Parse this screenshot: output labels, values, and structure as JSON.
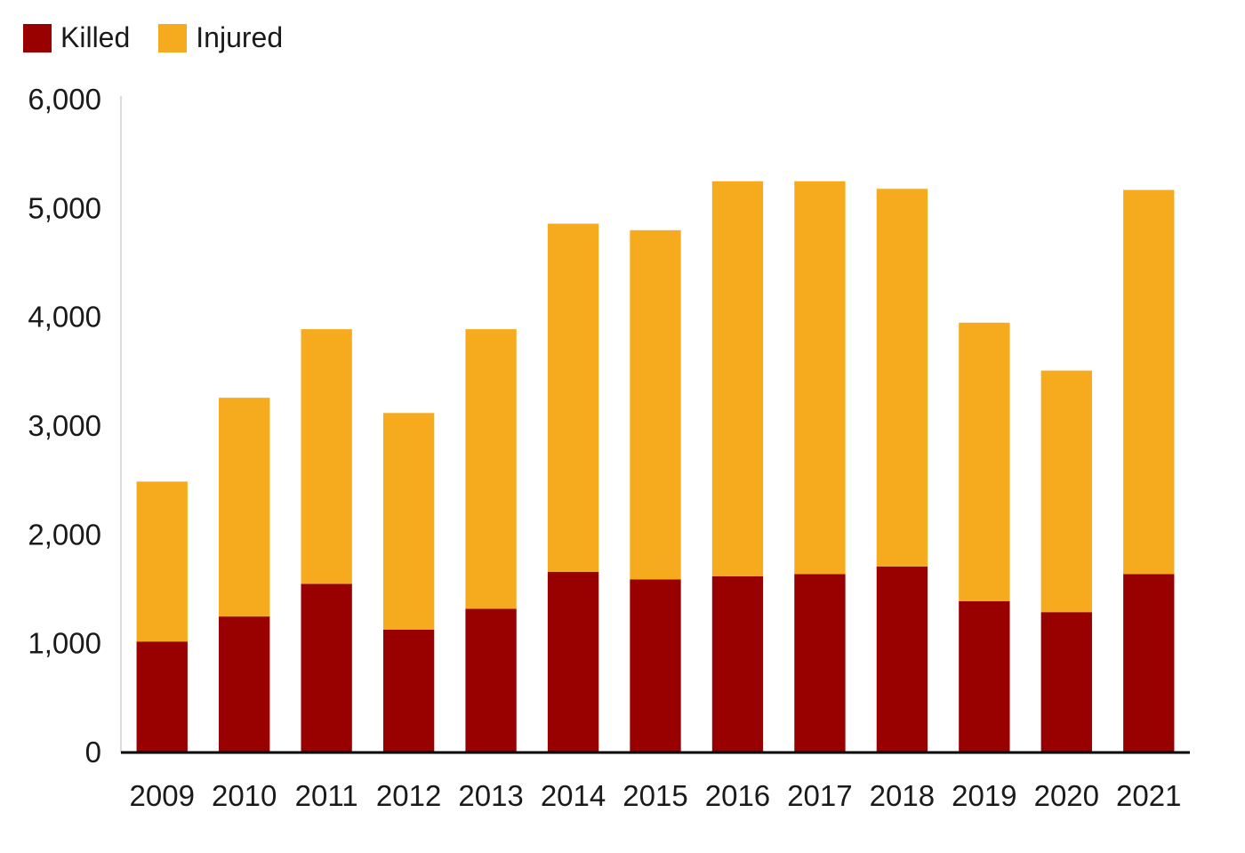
{
  "chart_data": {
    "type": "bar",
    "stacked": true,
    "categories": [
      "2009",
      "2010",
      "2011",
      "2012",
      "2013",
      "2014",
      "2015",
      "2016",
      "2017",
      "2018",
      "2019",
      "2020",
      "2021"
    ],
    "series": [
      {
        "name": "Killed",
        "color": "#990000",
        "values": [
          1020,
          1250,
          1550,
          1130,
          1320,
          1660,
          1590,
          1620,
          1640,
          1710,
          1390,
          1290,
          1640
        ]
      },
      {
        "name": "Injured",
        "color": "#f6ab1e",
        "values": [
          1470,
          2010,
          2340,
          1990,
          2570,
          3200,
          3210,
          3630,
          3610,
          3470,
          2560,
          2220,
          3530
        ]
      }
    ],
    "ylim": [
      0,
      6000
    ],
    "yticks": [
      0,
      1000,
      2000,
      3000,
      4000,
      5000,
      6000
    ],
    "ytick_labels": [
      "0",
      "1,000",
      "2,000",
      "3,000",
      "4,000",
      "5,000",
      "6,000"
    ],
    "title": "",
    "xlabel": "",
    "ylabel": "",
    "legend_position": "top-left",
    "grid": false
  }
}
